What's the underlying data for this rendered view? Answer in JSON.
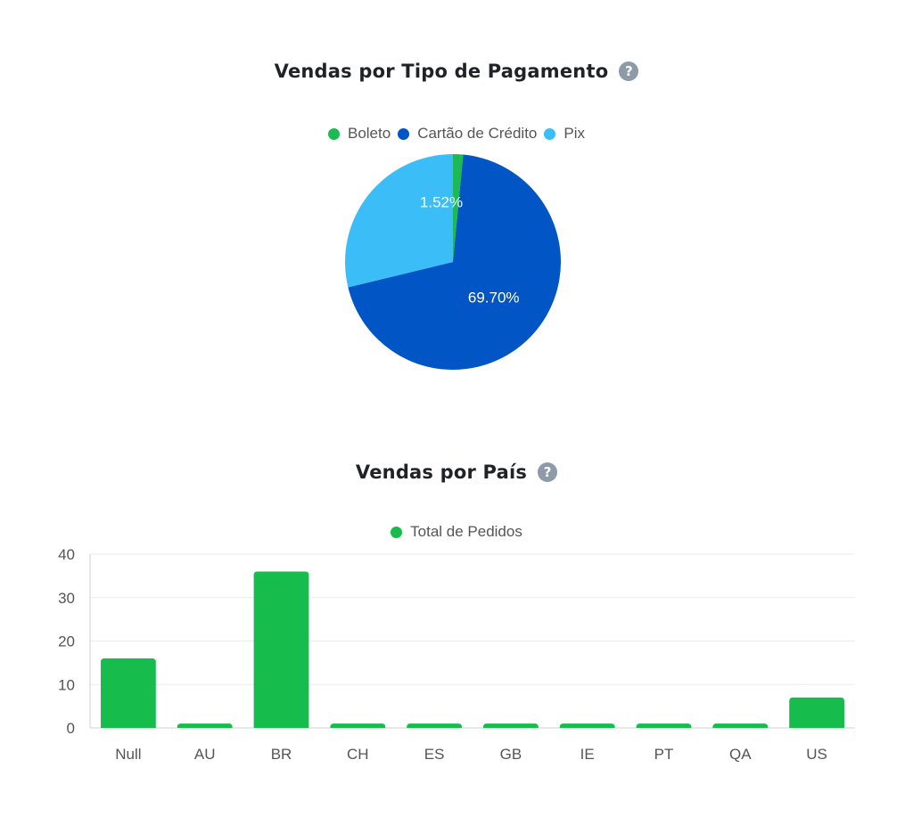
{
  "colors": {
    "boleto": "#1db954",
    "credito": "#0155c4",
    "pix": "#3bbdf8",
    "bar": "#16bc4c",
    "help_icon": "#8d9aa8"
  },
  "help_icon": "?",
  "pie": {
    "title": "Vendas por Tipo de Pagamento",
    "chart_data": {
      "type": "pie",
      "title": "Vendas por Tipo de Pagamento",
      "legend_position": "top",
      "slices": [
        {
          "label": "Boleto",
          "value": 1.52,
          "display": "1.52%",
          "color": "#1db954"
        },
        {
          "label": "Cartão de Crédito",
          "value": 69.7,
          "display": "69.70%",
          "color": "#0155c4"
        },
        {
          "label": "Pix",
          "value": 28.78,
          "display": "",
          "color": "#3bbdf8"
        }
      ]
    }
  },
  "bar": {
    "title": "Vendas por País",
    "chart_data": {
      "type": "bar",
      "title": "Vendas por País",
      "legend_position": "top",
      "categories": [
        "Null",
        "AU",
        "BR",
        "CH",
        "ES",
        "GB",
        "IE",
        "PT",
        "QA",
        "US"
      ],
      "series": [
        {
          "name": "Total de Pedidos",
          "values": [
            16,
            1,
            36,
            1,
            1,
            1,
            1,
            1,
            1,
            7
          ],
          "color": "#16bc4c"
        }
      ],
      "ylim": [
        0,
        40
      ],
      "yticks": [
        0,
        10,
        20,
        30,
        40
      ],
      "grid": true
    }
  }
}
